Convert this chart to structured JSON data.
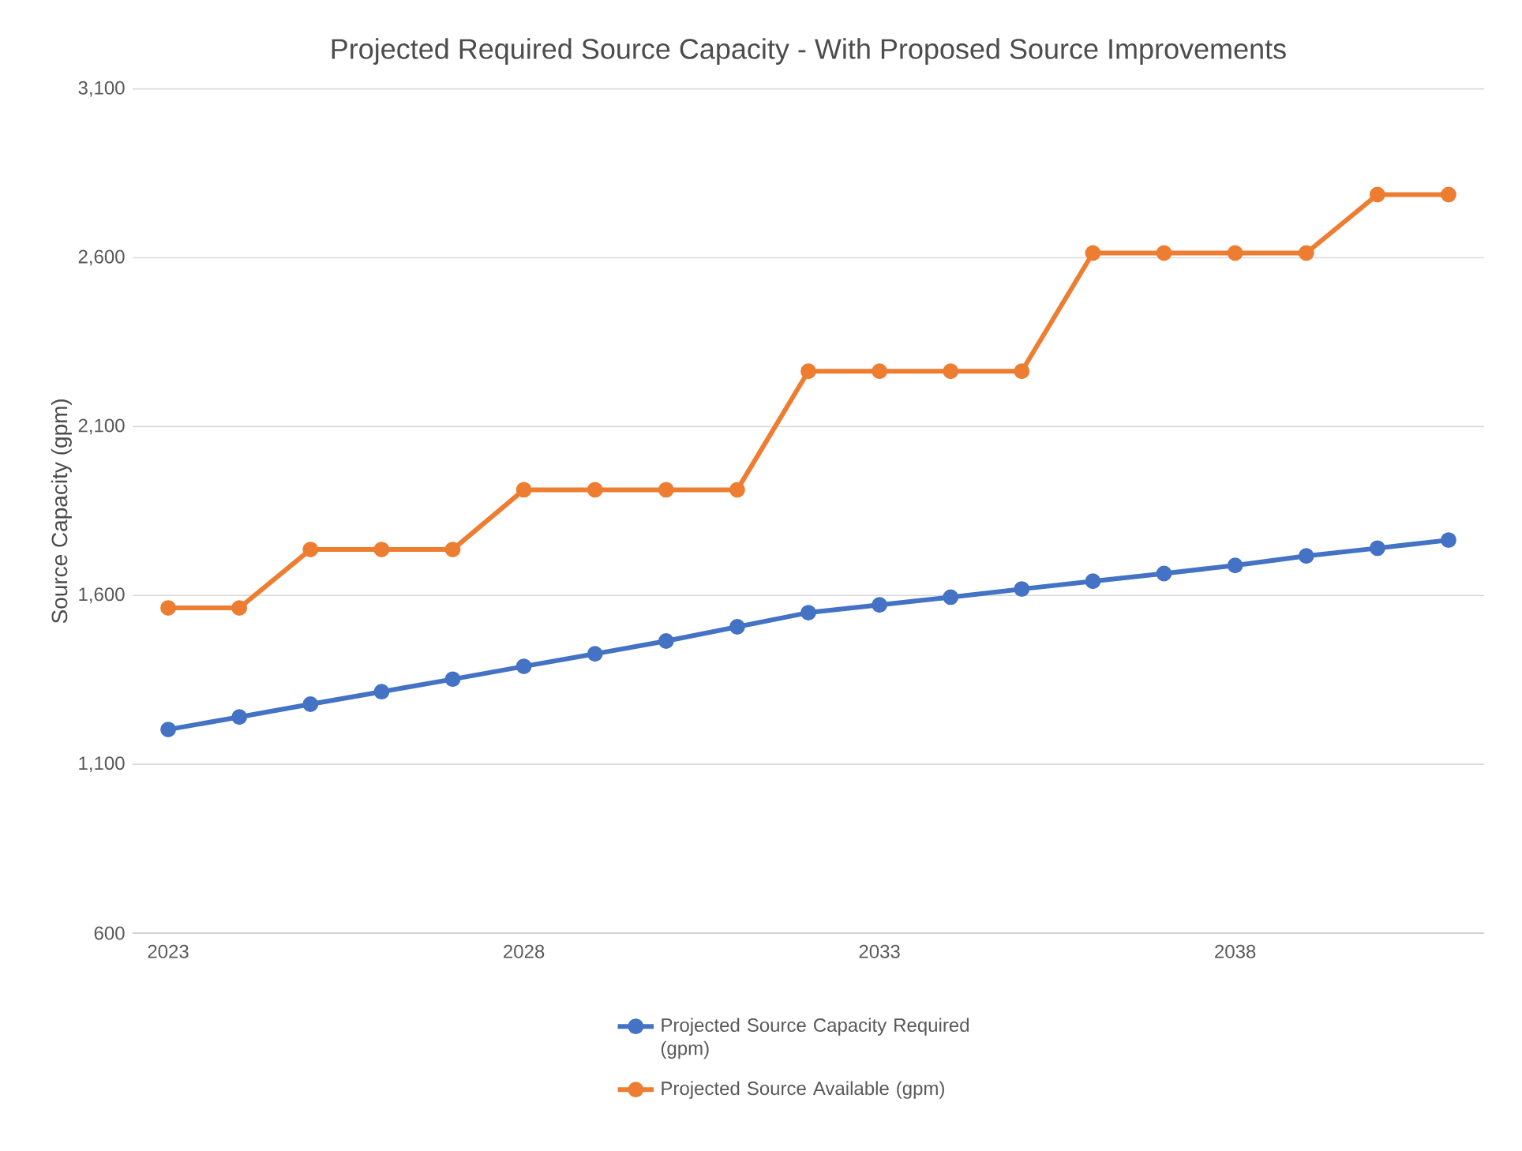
{
  "chart_data": {
    "type": "line",
    "title": "Projected Required Source Capacity - With Proposed Source Improvements",
    "ylabel": "Source Capacity (gpm)",
    "x": [
      2023,
      2024,
      2025,
      2026,
      2027,
      2028,
      2029,
      2030,
      2031,
      2032,
      2033,
      2034,
      2035,
      2036,
      2037,
      2038,
      2039,
      2040,
      2041
    ],
    "series": [
      {
        "name": "Projected Source Capacity Required (gpm)",
        "color": "#4472c4",
        "values": [
          1203,
          1240,
          1278,
          1315,
          1352,
          1390,
          1427,
          1465,
          1507,
          1549,
          1572,
          1595,
          1619,
          1642,
          1665,
          1689,
          1717,
          1740,
          1764
        ]
      },
      {
        "name": "Projected Source Available (gpm)",
        "color": "#ed7d31",
        "values": [
          1563,
          1563,
          1736,
          1736,
          1736,
          1913,
          1913,
          1913,
          1913,
          2264,
          2264,
          2264,
          2264,
          2614,
          2614,
          2614,
          2614,
          2787,
          2787
        ]
      }
    ],
    "xlim": [
      2022.5,
      2041.5
    ],
    "xticks": [
      2023,
      2028,
      2033,
      2038
    ],
    "ylim": [
      600,
      3100
    ],
    "yticks": [
      {
        "value": 600,
        "label": "600"
      },
      {
        "value": 1100,
        "label": "1,100"
      },
      {
        "value": 1600,
        "label": "1,600"
      },
      {
        "value": 2100,
        "label": "2,100"
      },
      {
        "value": 2600,
        "label": "2,600"
      },
      {
        "value": 3100,
        "label": "3,100"
      }
    ],
    "grid": "y",
    "legend": "bottom",
    "marker": "circle",
    "line_style": "solid"
  }
}
